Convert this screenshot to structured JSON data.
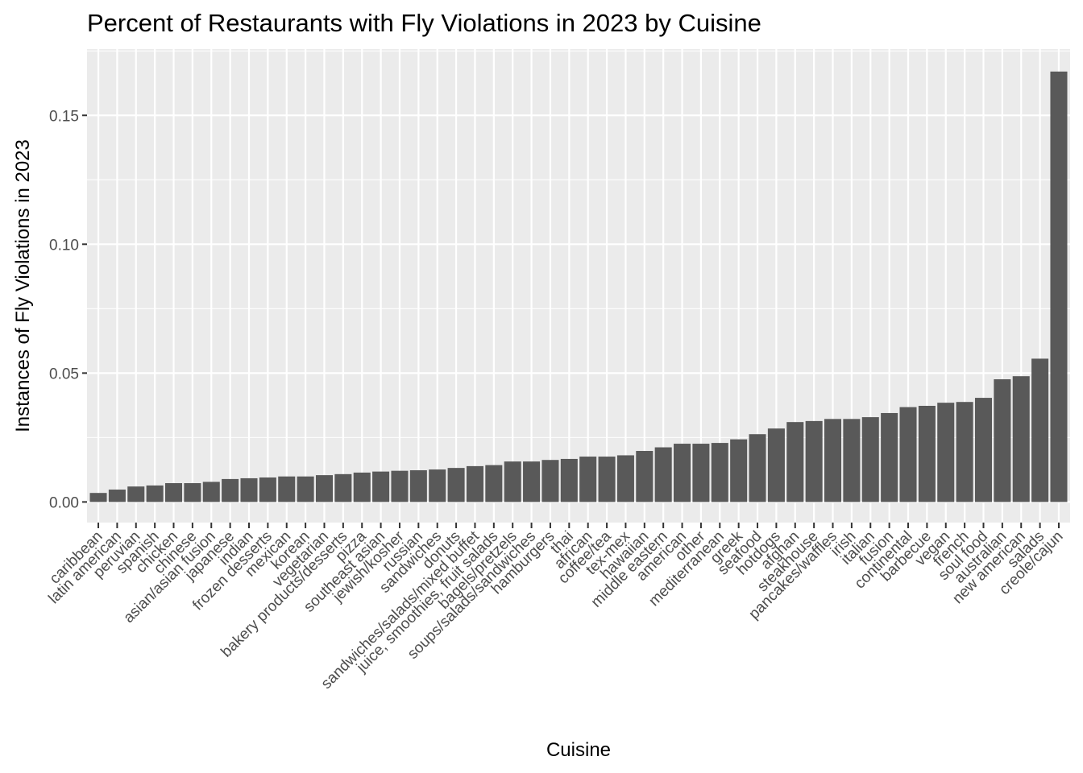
{
  "chart_data": {
    "type": "bar",
    "title": "Percent of Restaurants with Fly Violations in 2023 by Cuisine",
    "xlabel": "Cuisine",
    "ylabel": "Instances of Fly Violations in 2023",
    "ylim": [
      -0.008,
      0.1757
    ],
    "yticks": [
      0.0,
      0.05,
      0.1,
      0.15
    ],
    "ytick_labels": [
      "0.00",
      "0.05",
      "0.10",
      "0.15"
    ],
    "grid": true,
    "legend": "none",
    "colors": {
      "panel_background": "#ebebeb",
      "grid": "#ffffff",
      "bar": "#595959",
      "tick_text": "#4d4d4d",
      "tick_mark": "#333333"
    },
    "categories": [
      "caribbean",
      "latin american",
      "peruvian",
      "spanish",
      "chicken",
      "chinese",
      "asian/asian fusion",
      "japanese",
      "indian",
      "frozen desserts",
      "mexican",
      "korean",
      "vegetarian",
      "bakery products/desserts",
      "pizza",
      "southeast asian",
      "jewish/kosher",
      "russian",
      "sandwiches",
      "donuts",
      "sandwiches/salads/mixed buffet",
      "juice, smoothies, fruit salads",
      "bagels/pretzels",
      "soups/salads/sandwiches",
      "hamburgers",
      "thai",
      "african",
      "coffee/tea",
      "tex-mex",
      "hawaiian",
      "middle eastern",
      "american",
      "other",
      "mediterranean",
      "greek",
      "seafood",
      "hotdogs",
      "afghan",
      "steakhouse",
      "pancakes/waffles",
      "irish",
      "italian",
      "fusion",
      "continental",
      "barbecue",
      "vegan",
      "french",
      "soul food",
      "australian",
      "new american",
      "salads",
      "creole/cajun"
    ],
    "values": [
      0.0035,
      0.0048,
      0.006,
      0.0064,
      0.0073,
      0.0073,
      0.0078,
      0.0089,
      0.0092,
      0.0095,
      0.0099,
      0.0099,
      0.0104,
      0.0108,
      0.0114,
      0.0118,
      0.0121,
      0.0123,
      0.0126,
      0.0132,
      0.0139,
      0.0143,
      0.0157,
      0.0157,
      0.0163,
      0.0167,
      0.0176,
      0.0176,
      0.0181,
      0.0198,
      0.0212,
      0.0226,
      0.0226,
      0.0229,
      0.0243,
      0.0263,
      0.0285,
      0.031,
      0.0314,
      0.0322,
      0.0322,
      0.0329,
      0.0345,
      0.0368,
      0.0373,
      0.0385,
      0.0388,
      0.0404,
      0.0476,
      0.0488,
      0.0556,
      0.167
    ]
  }
}
